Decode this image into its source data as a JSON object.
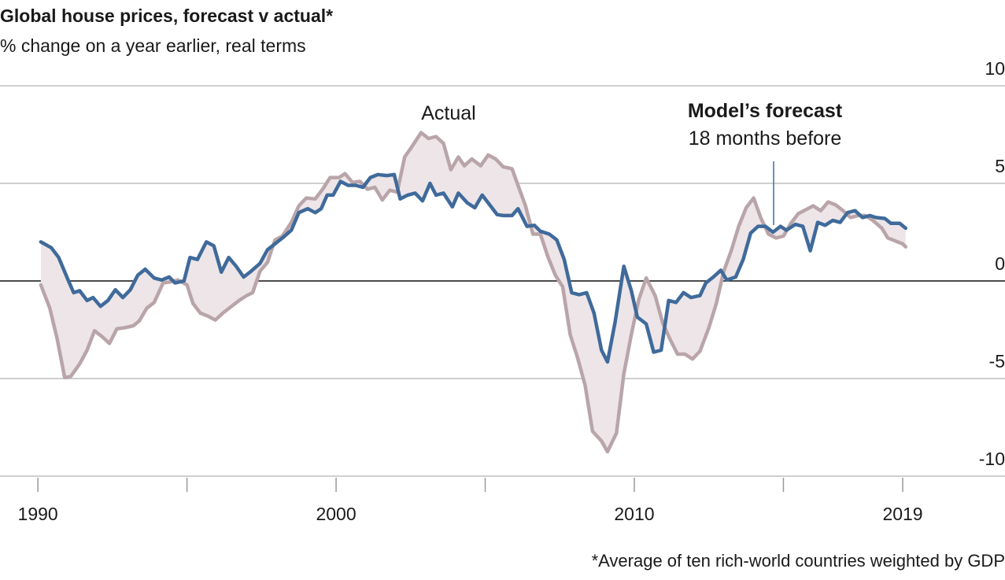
{
  "chart_data": {
    "type": "line",
    "title": "Global house prices, forecast v actual*",
    "subtitle": "% change on a year earlier, real terms",
    "footnote": "*Average of ten rich-world countries weighted by GDP",
    "annotation": "18 months before",
    "xlim": [
      1988.73,
      2022.43
    ],
    "xticks": [
      1990,
      2000,
      2010,
      2019
    ],
    "xminorticks": [
      1995,
      2005,
      2015
    ],
    "ylim": [
      -10,
      10
    ],
    "yticks": [
      -10,
      -5,
      0,
      5,
      10
    ],
    "grid": true,
    "fill_between": "#ede5e7",
    "series": [
      {
        "name": "Actual",
        "color": "#b9a5a9",
        "label_color": "#8a4a56",
        "x": [
          1990.1,
          1990.4,
          1990.65,
          1990.9,
          1991.1,
          1991.4,
          1991.65,
          1991.9,
          1992.15,
          1992.4,
          1992.65,
          1992.9,
          1993.2,
          1993.4,
          1993.65,
          1993.9,
          1994.2,
          1994.45,
          1994.7,
          1995.0,
          1995.2,
          1995.45,
          1995.7,
          1995.95,
          1996.2,
          1996.45,
          1996.75,
          1997.0,
          1997.2,
          1997.45,
          1997.7,
          1997.95,
          1998.2,
          1998.5,
          1998.75,
          1999.0,
          1999.3,
          1999.55,
          1999.8,
          2000.1,
          2000.3,
          2000.55,
          2000.8,
          2001.05,
          2001.3,
          2001.55,
          2001.8,
          2002.05,
          2002.3,
          2002.55,
          2002.85,
          2003.1,
          2003.35,
          2003.6,
          2003.85,
          2004.1,
          2004.3,
          2004.55,
          2004.85,
          2005.1,
          2005.35,
          2005.6,
          2005.9,
          2006.1,
          2006.35,
          2006.6,
          2006.85,
          2007.1,
          2007.35,
          2007.6,
          2007.85,
          2008.1,
          2008.35,
          2008.6,
          2008.9,
          2009.1,
          2009.4,
          2009.65,
          2009.9,
          2010.15,
          2010.4,
          2010.7,
          2010.95,
          2011.2,
          2011.45,
          2011.7,
          2011.95,
          2012.2,
          2012.5,
          2012.75,
          2013.0,
          2013.25,
          2013.5,
          2013.75,
          2014.0,
          2014.25,
          2014.5,
          2014.75,
          2015.0,
          2015.25,
          2015.5,
          2015.75,
          2016.0,
          2016.25,
          2016.5,
          2016.75,
          2017.0,
          2017.25,
          2017.5,
          2017.75,
          2018.0,
          2018.3,
          2018.5,
          2018.75,
          2019.0,
          2019.1
        ],
        "values": [
          -0.2,
          -1.4,
          -3.0,
          -4.95,
          -4.9,
          -4.25,
          -3.55,
          -2.55,
          -2.85,
          -3.2,
          -2.45,
          -2.4,
          -2.3,
          -2.05,
          -1.4,
          -1.1,
          -0.1,
          -0.05,
          0.05,
          -0.2,
          -1.15,
          -1.65,
          -1.8,
          -2.0,
          -1.65,
          -1.35,
          -1.0,
          -0.75,
          -0.6,
          0.5,
          0.95,
          2.1,
          2.3,
          3.0,
          3.85,
          4.25,
          4.2,
          4.7,
          5.3,
          5.3,
          5.5,
          5.05,
          5.1,
          4.7,
          4.8,
          4.15,
          4.65,
          4.55,
          6.35,
          6.9,
          7.6,
          7.3,
          7.4,
          7.05,
          5.7,
          6.35,
          5.9,
          6.25,
          5.9,
          6.45,
          6.25,
          5.85,
          5.75,
          4.9,
          3.85,
          2.4,
          2.4,
          1.25,
          0.3,
          -0.3,
          -2.75,
          -3.95,
          -5.35,
          -7.7,
          -8.2,
          -8.75,
          -7.8,
          -4.75,
          -2.75,
          -0.95,
          0.15,
          -0.75,
          -2.15,
          -3.0,
          -3.75,
          -3.75,
          -4.0,
          -3.6,
          -2.4,
          -1.15,
          0.5,
          1.55,
          2.8,
          3.75,
          4.25,
          3.2,
          2.4,
          2.2,
          2.3,
          2.95,
          3.45,
          3.65,
          3.85,
          3.6,
          4.05,
          3.9,
          3.6,
          3.25,
          3.35,
          3.35,
          3.1,
          2.7,
          2.2,
          2.05,
          1.9,
          1.75
        ]
      },
      {
        "name": "Model’s forecast",
        "color": "#3f6a9b",
        "label_color": "#3f6a9b",
        "x": [
          1990.1,
          1990.45,
          1990.7,
          1991.0,
          1991.2,
          1991.4,
          1991.65,
          1991.85,
          1992.1,
          1992.35,
          1992.6,
          1992.85,
          1993.1,
          1993.35,
          1993.6,
          1993.9,
          1994.15,
          1994.4,
          1994.6,
          1994.9,
          1995.1,
          1995.35,
          1995.65,
          1995.9,
          1996.15,
          1996.4,
          1996.65,
          1996.9,
          1997.15,
          1997.45,
          1997.7,
          1997.95,
          1998.2,
          1998.5,
          1998.75,
          1999.05,
          1999.3,
          1999.5,
          1999.7,
          1999.9,
          2000.15,
          2000.4,
          2000.65,
          2000.9,
          2001.15,
          2001.4,
          2001.7,
          2001.95,
          2002.15,
          2002.4,
          2002.65,
          2002.9,
          2003.15,
          2003.35,
          2003.6,
          2003.9,
          2004.1,
          2004.4,
          2004.65,
          2004.9,
          2005.1,
          2005.4,
          2005.6,
          2005.9,
          2006.1,
          2006.4,
          2006.65,
          2006.85,
          2007.15,
          2007.4,
          2007.65,
          2007.9,
          2008.15,
          2008.4,
          2008.65,
          2008.9,
          2009.1,
          2009.35,
          2009.65,
          2009.9,
          2010.1,
          2010.4,
          2010.65,
          2010.9,
          2011.15,
          2011.4,
          2011.65,
          2011.9,
          2012.2,
          2012.4,
          2012.65,
          2012.9,
          2013.1,
          2013.4,
          2013.65,
          2013.9,
          2014.15,
          2014.4,
          2014.65,
          2014.9,
          2015.1,
          2015.4,
          2015.65,
          2015.9,
          2016.15,
          2016.4,
          2016.65,
          2016.9,
          2017.15,
          2017.4,
          2017.65,
          2017.9,
          2018.1,
          2018.4,
          2018.6,
          2018.9,
          2019.1
        ],
        "values": [
          2.0,
          1.7,
          1.2,
          0.1,
          -0.6,
          -0.5,
          -1.0,
          -0.85,
          -1.3,
          -1.0,
          -0.45,
          -0.85,
          -0.45,
          0.3,
          0.6,
          0.15,
          0.05,
          0.2,
          -0.1,
          0.0,
          1.2,
          1.1,
          2.0,
          1.8,
          0.45,
          1.2,
          0.75,
          0.2,
          0.5,
          0.9,
          1.6,
          1.9,
          2.2,
          2.6,
          3.5,
          3.7,
          3.5,
          3.7,
          4.4,
          4.4,
          5.1,
          4.9,
          4.9,
          4.8,
          5.3,
          5.45,
          5.4,
          5.45,
          4.2,
          4.4,
          4.5,
          4.1,
          5.0,
          4.4,
          4.5,
          3.8,
          4.5,
          4.0,
          3.75,
          4.4,
          4.0,
          3.4,
          3.35,
          3.35,
          3.7,
          2.8,
          2.85,
          2.55,
          2.4,
          2.1,
          1.1,
          -0.6,
          -0.7,
          -0.6,
          -1.65,
          -3.55,
          -4.15,
          -2.15,
          0.75,
          -0.5,
          -1.85,
          -2.2,
          -3.65,
          -3.55,
          -1.0,
          -1.1,
          -0.6,
          -0.85,
          -0.75,
          -0.1,
          0.2,
          0.55,
          0.05,
          0.2,
          1.1,
          2.45,
          2.8,
          2.8,
          2.5,
          2.8,
          2.6,
          2.9,
          2.8,
          1.55,
          3.0,
          2.85,
          3.1,
          3.0,
          3.5,
          3.6,
          3.25,
          3.35,
          3.25,
          3.2,
          2.95,
          2.95,
          2.7
        ]
      }
    ]
  }
}
